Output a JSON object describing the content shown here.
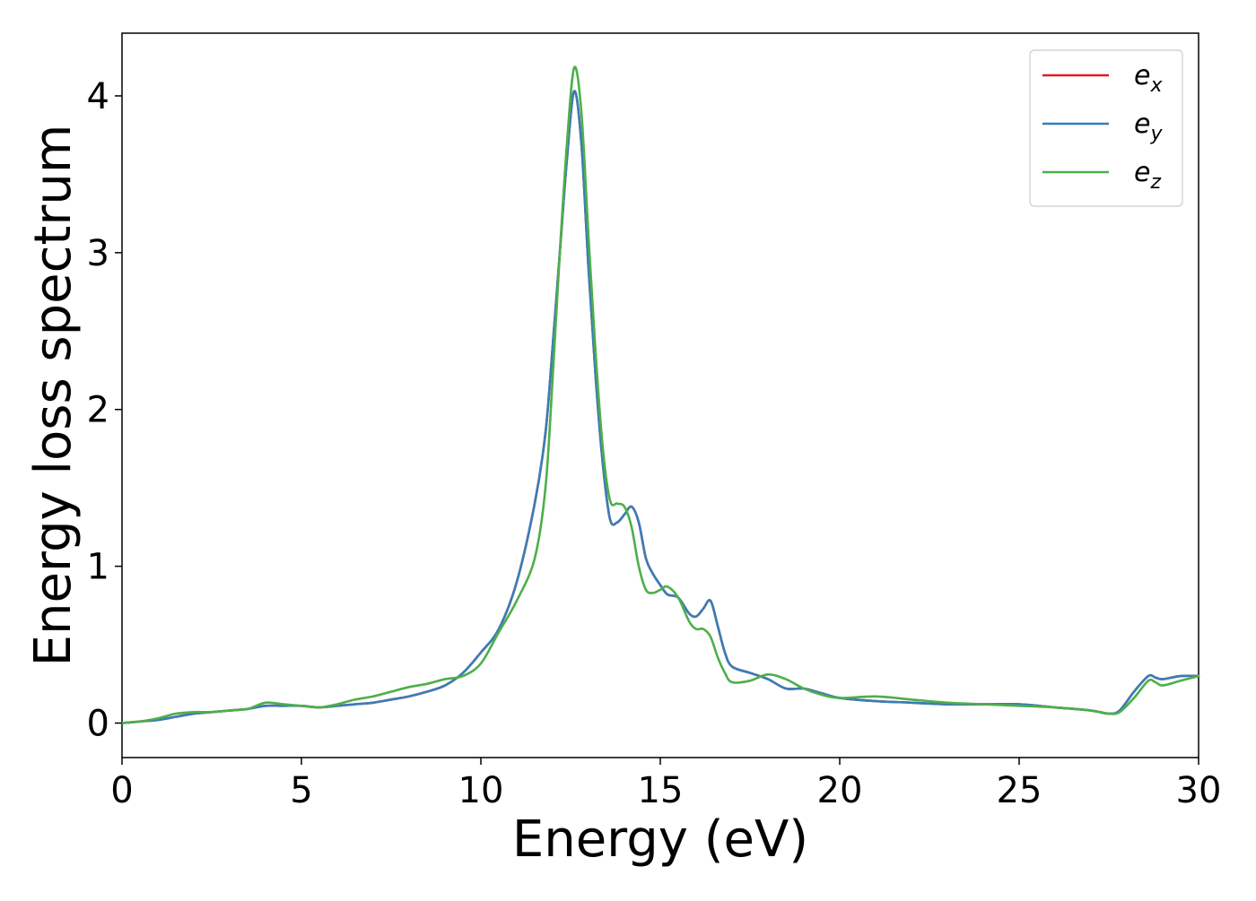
{
  "chart_data": {
    "type": "line",
    "xlabel": "Energy (eV)",
    "ylabel": "Energy loss spectrum",
    "xlim": [
      0,
      30
    ],
    "ylim": [
      -0.22,
      4.4
    ],
    "xticks": [
      0,
      5,
      10,
      15,
      20,
      25,
      30
    ],
    "yticks": [
      0,
      1,
      2,
      3,
      4
    ],
    "grid": false,
    "legend_position": "top-right",
    "series": [
      {
        "name": "e_x",
        "legend": {
          "base": "e",
          "sub": "x"
        },
        "color": "#e41a1c",
        "x": [
          0,
          0.5,
          1,
          1.5,
          2,
          2.5,
          3,
          3.5,
          4,
          4.5,
          5,
          5.5,
          6,
          6.5,
          7,
          7.5,
          8,
          8.5,
          9,
          9.5,
          10,
          10.5,
          11,
          11.5,
          11.8,
          12,
          12.2,
          12.4,
          12.6,
          12.8,
          13,
          13.2,
          13.4,
          13.6,
          13.8,
          14,
          14.2,
          14.4,
          14.6,
          14.8,
          15,
          15.2,
          15.5,
          15.8,
          16,
          16.2,
          16.4,
          16.6,
          16.8,
          17,
          17.5,
          18,
          18.5,
          19,
          19.5,
          20,
          21,
          22,
          23,
          24,
          25,
          26,
          27,
          27.5,
          27.8,
          28.2,
          28.6,
          28.8,
          29,
          29.5,
          30
        ],
        "values": [
          0.0,
          0.01,
          0.02,
          0.04,
          0.06,
          0.07,
          0.08,
          0.09,
          0.11,
          0.11,
          0.11,
          0.1,
          0.11,
          0.12,
          0.13,
          0.15,
          0.17,
          0.2,
          0.24,
          0.32,
          0.45,
          0.6,
          0.9,
          1.4,
          1.85,
          2.4,
          3.0,
          3.6,
          4.03,
          3.7,
          2.9,
          2.2,
          1.65,
          1.3,
          1.28,
          1.33,
          1.38,
          1.28,
          1.05,
          0.95,
          0.88,
          0.82,
          0.8,
          0.7,
          0.68,
          0.73,
          0.78,
          0.62,
          0.45,
          0.36,
          0.32,
          0.28,
          0.22,
          0.22,
          0.19,
          0.16,
          0.14,
          0.13,
          0.12,
          0.12,
          0.12,
          0.1,
          0.08,
          0.06,
          0.08,
          0.2,
          0.3,
          0.29,
          0.28,
          0.3,
          0.3
        ]
      },
      {
        "name": "e_y",
        "legend": {
          "base": "e",
          "sub": "y"
        },
        "color": "#377eb8",
        "x": [
          0,
          0.5,
          1,
          1.5,
          2,
          2.5,
          3,
          3.5,
          4,
          4.5,
          5,
          5.5,
          6,
          6.5,
          7,
          7.5,
          8,
          8.5,
          9,
          9.5,
          10,
          10.5,
          11,
          11.5,
          11.8,
          12,
          12.2,
          12.4,
          12.6,
          12.8,
          13,
          13.2,
          13.4,
          13.6,
          13.8,
          14,
          14.2,
          14.4,
          14.6,
          14.8,
          15,
          15.2,
          15.5,
          15.8,
          16,
          16.2,
          16.4,
          16.6,
          16.8,
          17,
          17.5,
          18,
          18.5,
          19,
          19.5,
          20,
          21,
          22,
          23,
          24,
          25,
          26,
          27,
          27.5,
          27.8,
          28.2,
          28.6,
          28.8,
          29,
          29.5,
          30
        ],
        "values": [
          0.0,
          0.01,
          0.02,
          0.04,
          0.06,
          0.07,
          0.08,
          0.09,
          0.11,
          0.11,
          0.11,
          0.1,
          0.11,
          0.12,
          0.13,
          0.15,
          0.17,
          0.2,
          0.24,
          0.32,
          0.45,
          0.6,
          0.9,
          1.4,
          1.85,
          2.4,
          3.0,
          3.6,
          4.03,
          3.7,
          2.9,
          2.2,
          1.65,
          1.3,
          1.28,
          1.33,
          1.38,
          1.28,
          1.05,
          0.95,
          0.88,
          0.82,
          0.8,
          0.7,
          0.68,
          0.73,
          0.78,
          0.62,
          0.45,
          0.36,
          0.32,
          0.28,
          0.22,
          0.22,
          0.19,
          0.16,
          0.14,
          0.13,
          0.12,
          0.12,
          0.12,
          0.1,
          0.08,
          0.06,
          0.08,
          0.2,
          0.3,
          0.29,
          0.28,
          0.3,
          0.3
        ]
      },
      {
        "name": "e_z",
        "legend": {
          "base": "e",
          "sub": "z"
        },
        "color": "#4daf4a",
        "x": [
          0,
          0.5,
          1,
          1.5,
          2,
          2.5,
          3,
          3.5,
          4,
          4.5,
          5,
          5.5,
          6,
          6.5,
          7,
          7.5,
          8,
          8.5,
          9,
          9.5,
          10,
          10.5,
          11,
          11.5,
          11.8,
          12,
          12.2,
          12.4,
          12.6,
          12.8,
          13,
          13.2,
          13.4,
          13.6,
          13.8,
          14,
          14.2,
          14.4,
          14.6,
          14.8,
          15,
          15.2,
          15.5,
          15.8,
          16,
          16.2,
          16.4,
          16.6,
          16.8,
          17,
          17.5,
          18,
          18.5,
          19,
          19.5,
          20,
          21,
          22,
          23,
          24,
          25,
          26,
          27,
          27.5,
          27.8,
          28.2,
          28.6,
          28.8,
          29,
          29.5,
          30
        ],
        "values": [
          0.0,
          0.01,
          0.03,
          0.06,
          0.07,
          0.07,
          0.08,
          0.09,
          0.13,
          0.12,
          0.11,
          0.1,
          0.12,
          0.15,
          0.17,
          0.2,
          0.23,
          0.25,
          0.28,
          0.3,
          0.38,
          0.58,
          0.78,
          1.05,
          1.5,
          2.2,
          3.0,
          3.7,
          4.18,
          3.9,
          3.1,
          2.35,
          1.75,
          1.42,
          1.4,
          1.38,
          1.25,
          1.0,
          0.85,
          0.83,
          0.85,
          0.87,
          0.8,
          0.65,
          0.6,
          0.6,
          0.55,
          0.42,
          0.32,
          0.26,
          0.27,
          0.31,
          0.28,
          0.22,
          0.18,
          0.16,
          0.17,
          0.15,
          0.13,
          0.12,
          0.11,
          0.1,
          0.08,
          0.06,
          0.07,
          0.16,
          0.27,
          0.26,
          0.24,
          0.27,
          0.3
        ]
      }
    ]
  }
}
